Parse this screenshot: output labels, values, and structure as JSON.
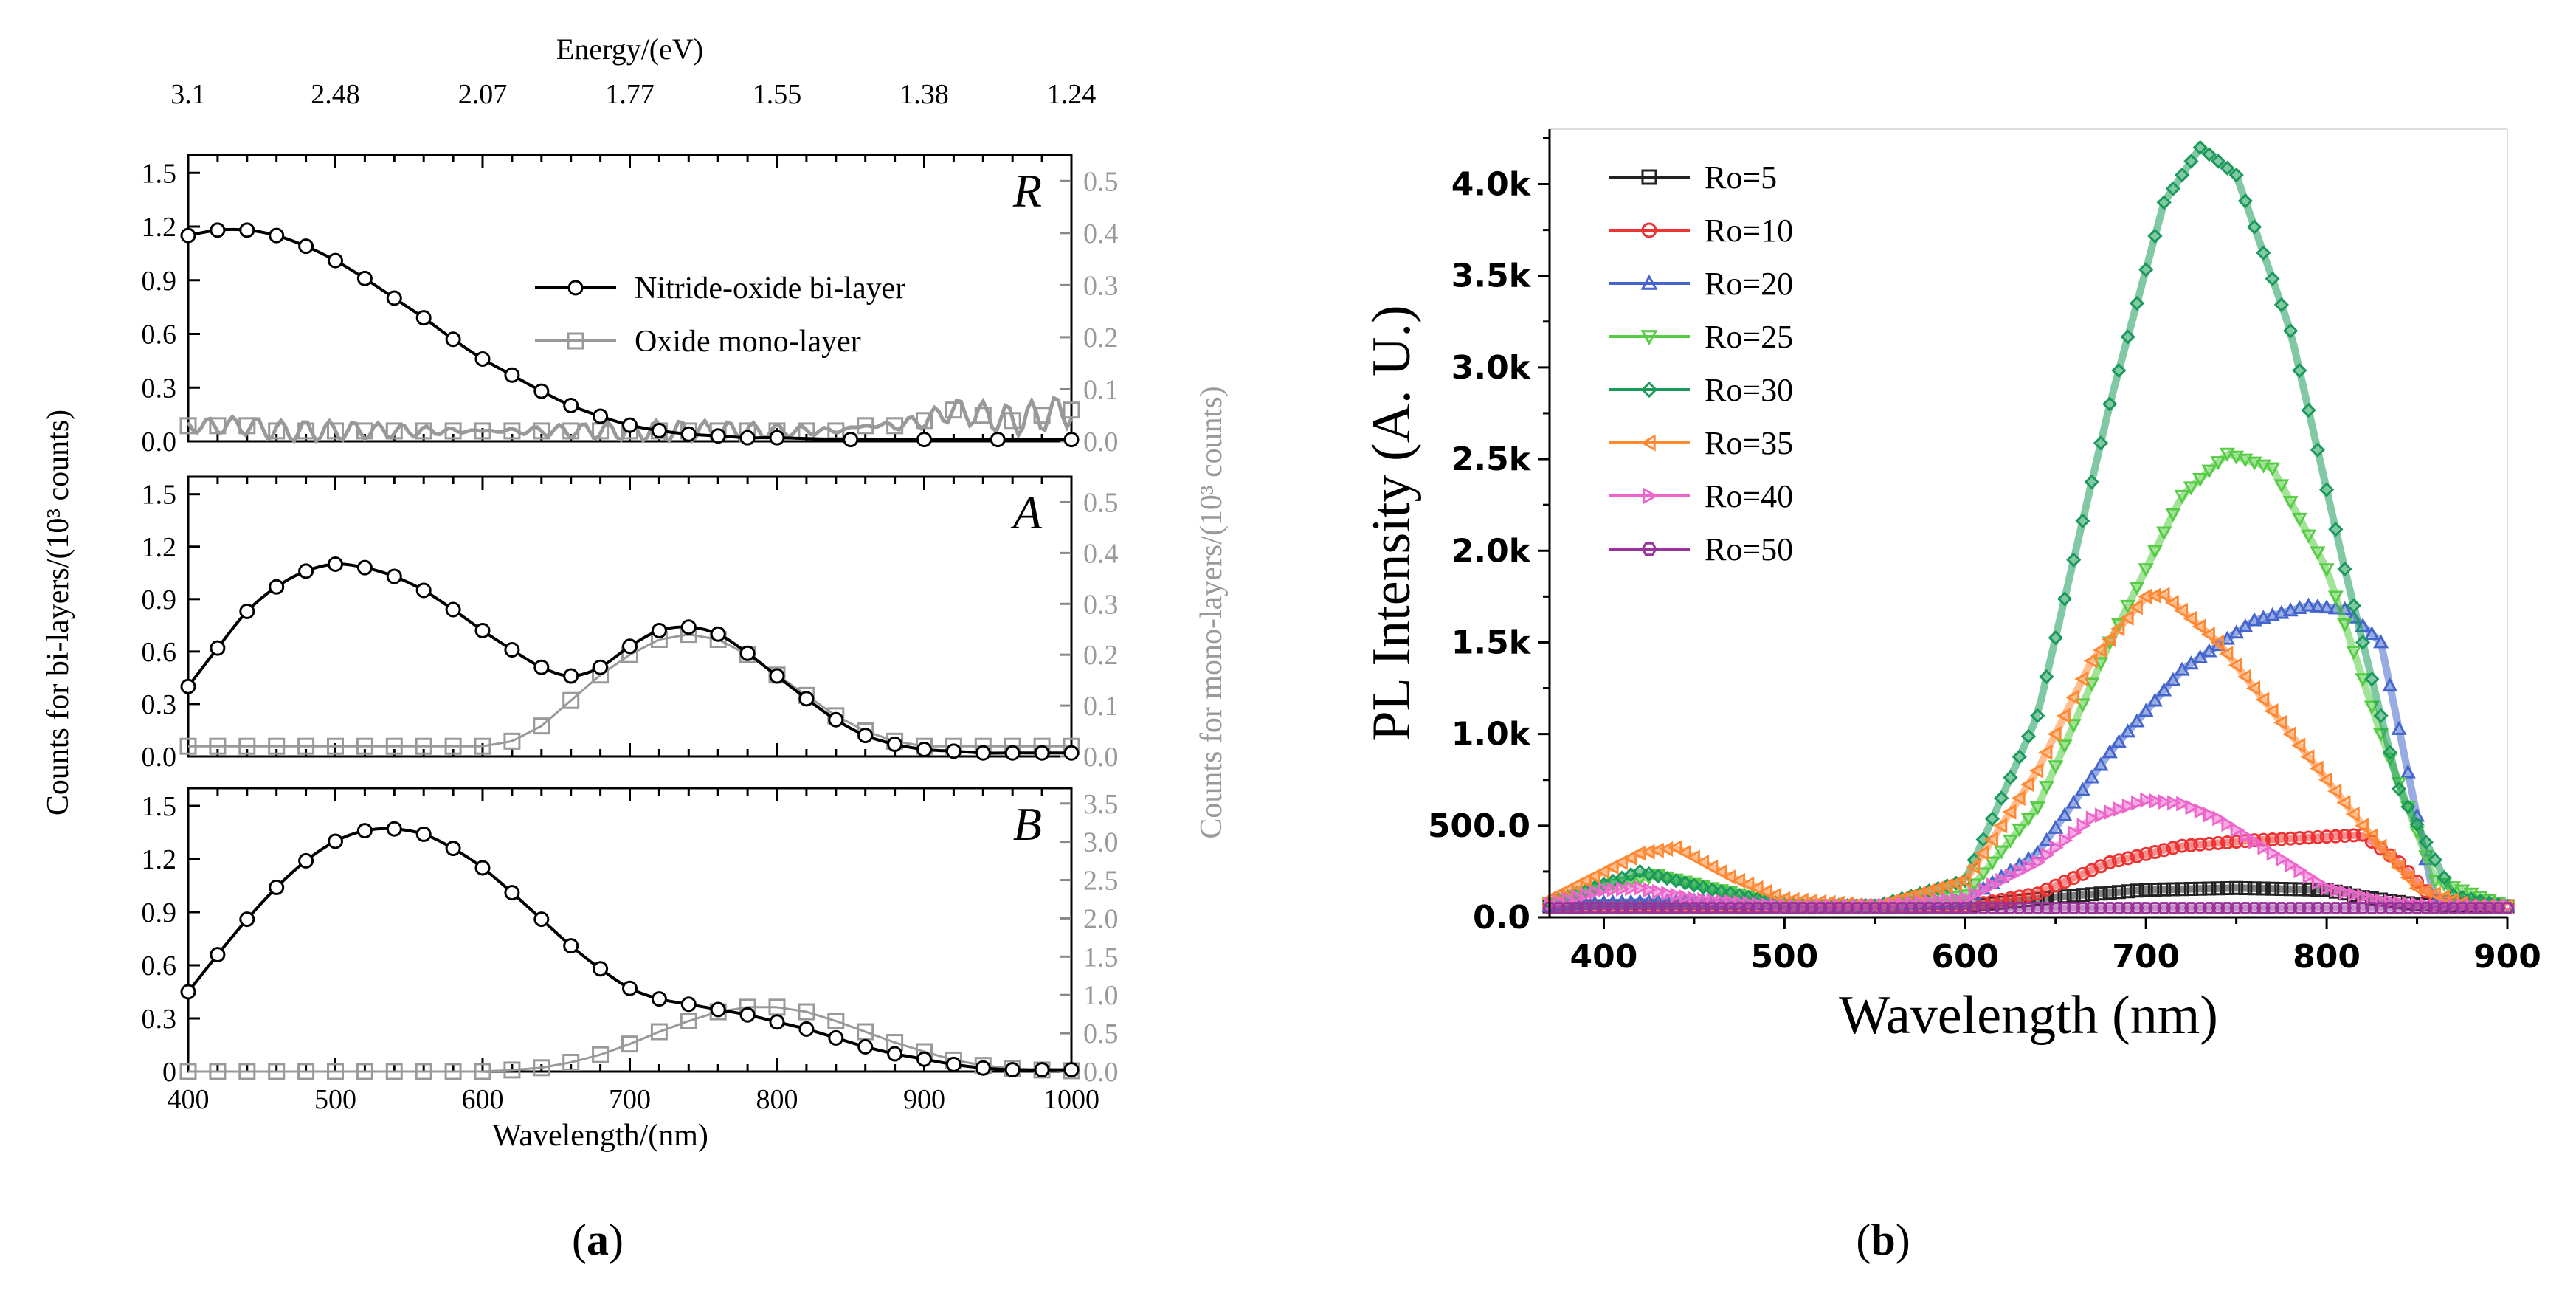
{
  "chart_data": [
    {
      "panel_label": "a",
      "type": "line",
      "title": "",
      "top_axis": {
        "label": "Energy/(eV)",
        "tick_labels": [
          "3.1",
          "2.48",
          "2.07",
          "1.77",
          "1.55",
          "1.38",
          "1.24"
        ],
        "tick_wavelengths": [
          400,
          500,
          600,
          700,
          800,
          900,
          1000
        ]
      },
      "xlabel": "Wavelength/(nm)",
      "xlim": [
        400,
        1000
      ],
      "xticks": [
        400,
        500,
        600,
        700,
        800,
        900,
        1000
      ],
      "ylabel_left": "Counts for bi-layers/(10³ counts)",
      "ylabel_right": "Counts for mono-layers/(10³ counts)",
      "legend": [
        "Nitride-oxide bi-layer",
        "Oxide mono-layer"
      ],
      "colors": {
        "bilayer": "#000000",
        "monolayer": "#999999"
      },
      "subpanels": [
        {
          "label": "R",
          "ylim_left": [
            0,
            1.6
          ],
          "yticks_left": [
            "0.0",
            "0.3",
            "0.6",
            "0.9",
            "1.2",
            "1.5"
          ],
          "ylim_right": [
            0,
            0.55
          ],
          "yticks_right": [
            "0.0",
            "0.1",
            "0.2",
            "0.3",
            "0.4",
            "0.5"
          ],
          "series": [
            {
              "name": "Nitride-oxide bi-layer",
              "x": [
                400,
                420,
                440,
                460,
                480,
                500,
                520,
                540,
                560,
                580,
                600,
                620,
                640,
                660,
                680,
                700,
                720,
                740,
                760,
                780,
                800,
                850,
                900,
                950,
                1000
              ],
              "y": [
                1.15,
                1.18,
                1.18,
                1.15,
                1.09,
                1.01,
                0.91,
                0.8,
                0.69,
                0.57,
                0.46,
                0.37,
                0.28,
                0.2,
                0.14,
                0.09,
                0.06,
                0.04,
                0.03,
                0.02,
                0.02,
                0.01,
                0.01,
                0.01,
                0.01
              ]
            },
            {
              "name": "Oxide mono-layer",
              "axis": "right",
              "x": [
                400,
                420,
                440,
                460,
                480,
                500,
                520,
                540,
                560,
                580,
                600,
                620,
                640,
                660,
                680,
                700,
                720,
                740,
                760,
                780,
                800,
                820,
                840,
                860,
                880,
                900,
                920,
                940,
                960,
                980,
                1000
              ],
              "y": [
                0.03,
                0.03,
                0.03,
                0.02,
                0.02,
                0.02,
                0.02,
                0.02,
                0.02,
                0.02,
                0.02,
                0.02,
                0.02,
                0.02,
                0.02,
                0.02,
                0.02,
                0.02,
                0.02,
                0.02,
                0.02,
                0.02,
                0.02,
                0.03,
                0.03,
                0.04,
                0.06,
                0.05,
                0.04,
                0.05,
                0.06
              ]
            }
          ]
        },
        {
          "label": "A",
          "ylim_left": [
            0,
            1.6
          ],
          "yticks_left": [
            "0.0",
            "0.3",
            "0.6",
            "0.9",
            "1.2",
            "1.5"
          ],
          "ylim_right": [
            0,
            0.55
          ],
          "yticks_right": [
            "0.0",
            "0.1",
            "0.2",
            "0.3",
            "0.4",
            "0.5"
          ],
          "series": [
            {
              "name": "Nitride-oxide bi-layer",
              "x": [
                400,
                420,
                440,
                460,
                480,
                500,
                520,
                540,
                560,
                580,
                600,
                620,
                640,
                660,
                680,
                700,
                720,
                740,
                760,
                780,
                800,
                820,
                840,
                860,
                880,
                900,
                920,
                940,
                960,
                980,
                1000
              ],
              "y": [
                0.4,
                0.62,
                0.83,
                0.97,
                1.06,
                1.1,
                1.08,
                1.03,
                0.95,
                0.84,
                0.72,
                0.61,
                0.51,
                0.46,
                0.51,
                0.63,
                0.72,
                0.74,
                0.7,
                0.59,
                0.46,
                0.33,
                0.21,
                0.12,
                0.07,
                0.04,
                0.03,
                0.02,
                0.02,
                0.02,
                0.02
              ]
            },
            {
              "name": "Oxide mono-layer",
              "axis": "right",
              "x": [
                400,
                420,
                440,
                460,
                480,
                500,
                520,
                540,
                560,
                580,
                600,
                620,
                640,
                660,
                680,
                700,
                720,
                740,
                760,
                780,
                800,
                820,
                840,
                860,
                880,
                900,
                920,
                940,
                960,
                980,
                1000
              ],
              "y": [
                0.02,
                0.02,
                0.02,
                0.02,
                0.02,
                0.02,
                0.02,
                0.02,
                0.02,
                0.02,
                0.02,
                0.03,
                0.06,
                0.11,
                0.16,
                0.2,
                0.23,
                0.24,
                0.23,
                0.2,
                0.16,
                0.12,
                0.08,
                0.05,
                0.03,
                0.02,
                0.02,
                0.02,
                0.02,
                0.02,
                0.02
              ]
            }
          ]
        },
        {
          "label": "B",
          "ylim_left": [
            0,
            1.6
          ],
          "yticks_left": [
            "0",
            "0.3",
            "0.6",
            "0.9",
            "1.2",
            "1.5"
          ],
          "ylim_right": [
            0,
            3.7
          ],
          "yticks_right": [
            "0.0",
            "0.5",
            "1.0",
            "1.5",
            "2.0",
            "2.5",
            "3.0",
            "3.5"
          ],
          "series": [
            {
              "name": "Nitride-oxide bi-layer",
              "x": [
                400,
                420,
                440,
                460,
                480,
                500,
                520,
                540,
                560,
                580,
                600,
                620,
                640,
                660,
                680,
                700,
                720,
                740,
                760,
                780,
                800,
                820,
                840,
                860,
                880,
                900,
                920,
                940,
                960,
                980,
                1000
              ],
              "y": [
                0.45,
                0.66,
                0.86,
                1.04,
                1.19,
                1.3,
                1.36,
                1.37,
                1.34,
                1.26,
                1.15,
                1.01,
                0.86,
                0.71,
                0.58,
                0.47,
                0.41,
                0.38,
                0.35,
                0.32,
                0.28,
                0.24,
                0.19,
                0.14,
                0.1,
                0.07,
                0.04,
                0.02,
                0.01,
                0.01,
                0.01
              ]
            },
            {
              "name": "Oxide mono-layer",
              "axis": "right",
              "x": [
                400,
                420,
                440,
                460,
                480,
                500,
                520,
                540,
                560,
                580,
                600,
                620,
                640,
                660,
                680,
                700,
                720,
                740,
                760,
                780,
                800,
                820,
                840,
                860,
                880,
                900,
                920,
                940,
                960,
                980,
                1000
              ],
              "y": [
                0.0,
                0.0,
                0.0,
                0.0,
                0.0,
                0.0,
                0.0,
                0.0,
                0.0,
                0.0,
                0.0,
                0.02,
                0.05,
                0.12,
                0.22,
                0.36,
                0.52,
                0.66,
                0.78,
                0.84,
                0.84,
                0.78,
                0.66,
                0.52,
                0.38,
                0.26,
                0.15,
                0.08,
                0.04,
                0.02,
                0.01
              ]
            }
          ]
        }
      ]
    },
    {
      "panel_label": "b",
      "type": "line",
      "title": "",
      "xlabel": "Wavelength (nm)",
      "ylabel": "PL Intensity (A. U.)",
      "xlim": [
        370,
        900
      ],
      "xticks": [
        "400",
        "500",
        "600",
        "700",
        "800",
        "900"
      ],
      "ylim": [
        0,
        4300
      ],
      "yticks": [
        "0.0",
        "500.0",
        "1.0k",
        "1.5k",
        "2.0k",
        "2.5k",
        "3.0k",
        "3.5k",
        "4.0k"
      ],
      "legend_position": "top-left",
      "series": [
        {
          "name": "Ro=5",
          "color": "#222222",
          "marker": "□",
          "x": [
            370,
            400,
            450,
            500,
            550,
            600,
            650,
            700,
            750,
            800,
            820,
            850,
            900
          ],
          "y": [
            60,
            60,
            60,
            60,
            60,
            60,
            110,
            150,
            160,
            150,
            110,
            70,
            60
          ]
        },
        {
          "name": "Ro=10",
          "color": "#ee3333",
          "marker": "○",
          "x": [
            370,
            400,
            450,
            500,
            550,
            600,
            640,
            680,
            720,
            760,
            800,
            820,
            840,
            860,
            900
          ],
          "y": [
            60,
            60,
            60,
            60,
            60,
            60,
            130,
            300,
            390,
            420,
            440,
            450,
            300,
            90,
            60
          ]
        },
        {
          "name": "Ro=20",
          "color": "#4466cc",
          "marker": "△",
          "x": [
            370,
            400,
            450,
            500,
            550,
            600,
            640,
            680,
            720,
            760,
            790,
            810,
            830,
            860,
            900
          ],
          "y": [
            60,
            80,
            90,
            70,
            60,
            90,
            350,
            900,
            1350,
            1620,
            1700,
            1680,
            1500,
            80,
            60
          ]
        },
        {
          "name": "Ro=25",
          "color": "#55cc44",
          "marker": "▽",
          "x": [
            370,
            400,
            430,
            460,
            500,
            550,
            600,
            640,
            680,
            720,
            745,
            770,
            800,
            830,
            860,
            900
          ],
          "y": [
            80,
            170,
            230,
            160,
            70,
            60,
            120,
            600,
            1500,
            2300,
            2530,
            2450,
            1900,
            1000,
            200,
            60
          ]
        },
        {
          "name": "Ro=30",
          "color": "#1a9a5a",
          "marker": "◇",
          "x": [
            370,
            400,
            420,
            460,
            500,
            550,
            600,
            640,
            680,
            710,
            730,
            750,
            780,
            810,
            840,
            870,
            900
          ],
          "y": [
            80,
            180,
            250,
            150,
            70,
            60,
            200,
            1100,
            2800,
            3900,
            4200,
            4050,
            3200,
            1900,
            700,
            120,
            60
          ]
        },
        {
          "name": "Ro=35",
          "color": "#ff8833",
          "marker": "◁",
          "x": [
            370,
            400,
            420,
            440,
            470,
            500,
            550,
            600,
            640,
            670,
            700,
            710,
            740,
            780,
            820,
            850,
            880,
            900
          ],
          "y": [
            100,
            250,
            350,
            380,
            220,
            100,
            60,
            200,
            800,
            1400,
            1750,
            1760,
            1500,
            1000,
            500,
            160,
            60,
            60
          ]
        },
        {
          "name": "Ro=40",
          "color": "#ee66cc",
          "marker": "▷",
          "x": [
            370,
            400,
            420,
            450,
            500,
            550,
            600,
            640,
            670,
            700,
            720,
            740,
            770,
            800,
            830,
            860,
            900
          ],
          "y": [
            70,
            150,
            160,
            100,
            60,
            60,
            100,
            300,
            540,
            640,
            620,
            540,
            350,
            160,
            90,
            60,
            60
          ]
        },
        {
          "name": "Ro=50",
          "color": "#993399",
          "marker": "⬡",
          "x": [
            370,
            900
          ],
          "y": [
            50,
            50
          ]
        }
      ]
    }
  ],
  "captions": {
    "a": "(a)",
    "b": "(b)"
  }
}
